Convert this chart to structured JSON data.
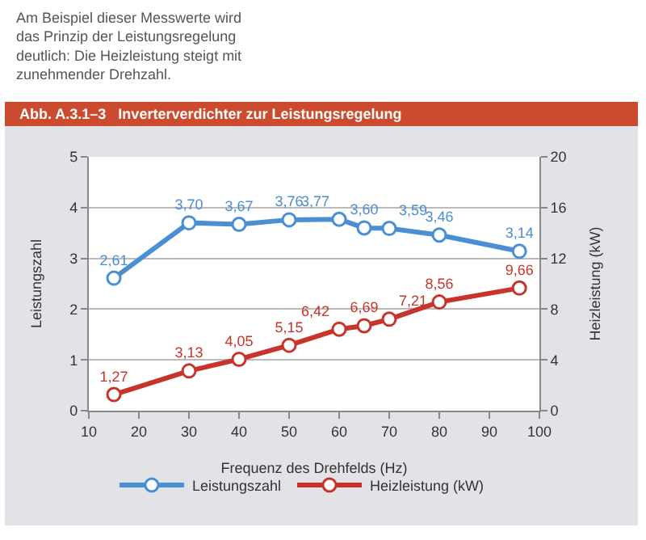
{
  "chart_data": {
    "type": "line",
    "title": "Abb. A.3.1–3   Inverterverdichter zur Leistungsregelung",
    "annotations": [
      "Am Beispiel dieser Messwerte wird\ndas Prinzip der Leistungsregelung\ndeutlich: Die Heizleistung steigt mit\nzunehmender Drehzahl."
    ],
    "xlabel": "Frequenz des Drehfelds (Hz)",
    "ylabel": "Leistungszahl",
    "y2label": "Heizleistung (kW)",
    "x": [
      15,
      30,
      40,
      50,
      60,
      65,
      70,
      80,
      96
    ],
    "series": [
      {
        "name": "Leistungszahl",
        "color": "#4a8fd4",
        "values": [
          2.61,
          3.7,
          3.67,
          3.76,
          3.77,
          3.6,
          3.59,
          3.46,
          3.14
        ],
        "value_labels": [
          "2,61",
          "3,70",
          "3,67",
          "3,76",
          "3,77",
          "3,60",
          "3,59",
          "3,46",
          "3,14"
        ]
      },
      {
        "name": "Heizleistung (kW)",
        "color": "#c8342c",
        "axis": "y2",
        "values": [
          1.27,
          3.13,
          4.05,
          5.15,
          6.42,
          6.69,
          7.21,
          8.56,
          9.66
        ],
        "value_labels": [
          "1,27",
          "3,13",
          "4,05",
          "5,15",
          "6,42",
          "6,69",
          "7,21",
          "8,56",
          "9,66"
        ]
      }
    ],
    "xlim": [
      10,
      100
    ],
    "xticks": [
      10,
      20,
      30,
      40,
      50,
      60,
      70,
      80,
      90,
      100
    ],
    "ylim": [
      0,
      5
    ],
    "yticks": [
      0,
      1,
      2,
      3,
      4,
      5
    ],
    "y2lim": [
      0,
      20
    ],
    "y2ticks": [
      0,
      4,
      8,
      12,
      16,
      20
    ],
    "grid": "y",
    "legend": "bottom",
    "marker": "circle",
    "line_style": "solid"
  }
}
